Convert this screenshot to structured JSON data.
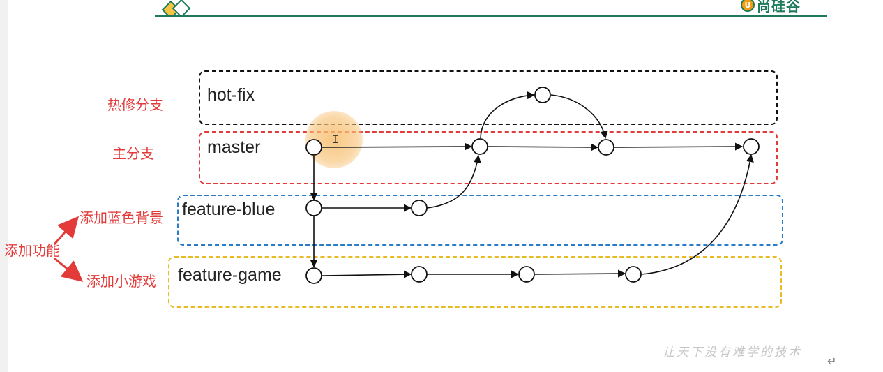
{
  "branches": {
    "hotfix": "hot-fix",
    "master": "master",
    "feature_blue": "feature-blue",
    "feature_game": "feature-game"
  },
  "notes": {
    "hotfix": "热修分支",
    "master": "主分支",
    "add_feature": "添加功能",
    "blue_bg": "添加蓝色背景",
    "mini_game": "添加小游戏"
  },
  "brand": {
    "name": "尚硅谷",
    "slogan": "让天下没有难学的技术"
  },
  "colors": {
    "hotfix": "#111111",
    "master": "#e33a3a",
    "feature_blue": "#2a7cc9",
    "feature_game": "#e9bb22",
    "annotation": "#e33a3a",
    "header_line": "#1f7a5c"
  },
  "icons": [
    "git-commit-node-icon",
    "arrow-icon",
    "text-cursor-icon",
    "return-mark-icon"
  ]
}
